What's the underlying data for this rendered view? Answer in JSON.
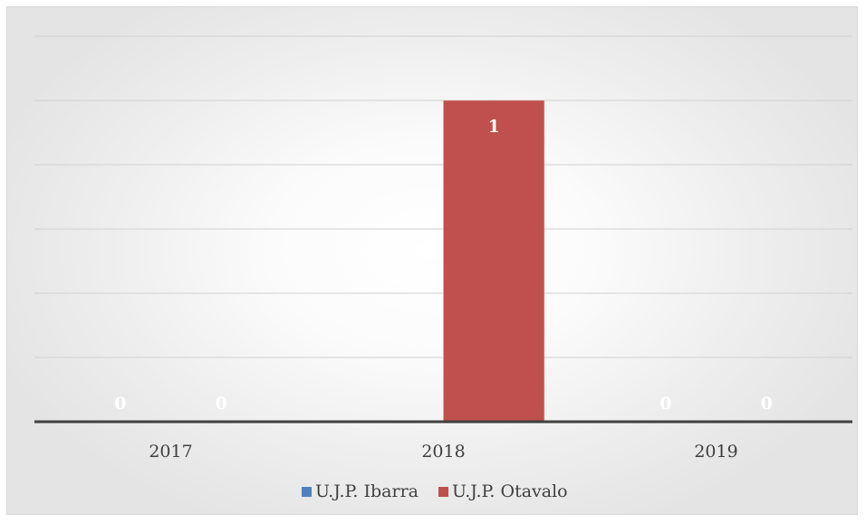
{
  "chart_data": {
    "type": "bar",
    "categories": [
      "2017",
      "2018",
      "2019"
    ],
    "series": [
      {
        "name": "U.J.P. Ibarra",
        "values": [
          0,
          0,
          0
        ],
        "color": "#4f81bd"
      },
      {
        "name": "U.J.P. Otavalo",
        "values": [
          0,
          1,
          0
        ],
        "color": "#c0504d"
      }
    ],
    "data_labels": [
      [
        "0",
        "",
        "0"
      ],
      [
        "0",
        "1",
        "0"
      ]
    ],
    "ylim": [
      0,
      1.2
    ],
    "gridlines": true,
    "legend_position": "bottom",
    "title": "",
    "xlabel": "",
    "ylabel": ""
  }
}
